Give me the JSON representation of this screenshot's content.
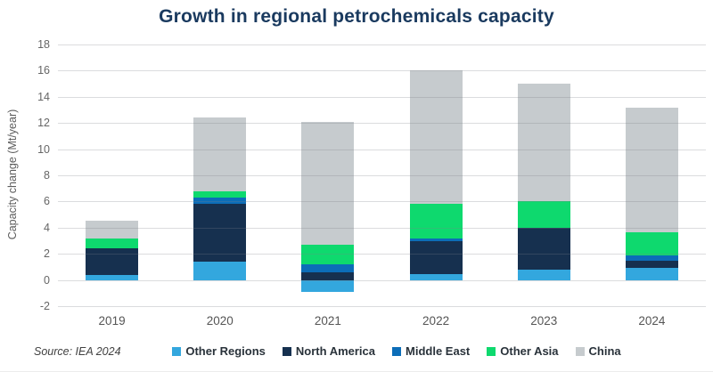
{
  "title": "Growth in regional petrochemicals capacity",
  "source": "Source: IEA 2024",
  "chart_data": {
    "type": "bar",
    "stacked": true,
    "title": "Growth in regional petrochemicals capacity",
    "ylabel": "Capacity change (Mt/year)",
    "xlabel": "",
    "ylim": [
      -2,
      18
    ],
    "ytick_step": 2,
    "grid": true,
    "legend_position": "bottom",
    "categories": [
      "2019",
      "2020",
      "2021",
      "2022",
      "2023",
      "2024"
    ],
    "series": [
      {
        "name": "Other Regions",
        "color": "#33a7de",
        "values": [
          0.4,
          1.4,
          -0.9,
          0.45,
          0.8,
          0.9
        ]
      },
      {
        "name": "North America",
        "color": "#16304f",
        "values": [
          2.0,
          4.4,
          0.6,
          2.5,
          3.2,
          0.6
        ]
      },
      {
        "name": "Middle East",
        "color": "#0c6db8",
        "values": [
          0.0,
          0.5,
          0.6,
          0.25,
          0.0,
          0.35
        ]
      },
      {
        "name": "Other Asia",
        "color": "#0ed96e",
        "values": [
          0.8,
          0.5,
          1.5,
          2.6,
          2.0,
          1.8
        ]
      },
      {
        "name": "China",
        "color": "#c6cbce",
        "values": [
          1.3,
          5.6,
          9.4,
          10.2,
          9.0,
          9.5
        ]
      }
    ],
    "totals": [
      4.5,
      12.4,
      12.1,
      16.0,
      15.0,
      13.15
    ]
  },
  "colors": {
    "title": "#1a3a5f",
    "gridline": "#dcdddf",
    "axis_text": "#666666",
    "legend_text": "#29323a"
  }
}
